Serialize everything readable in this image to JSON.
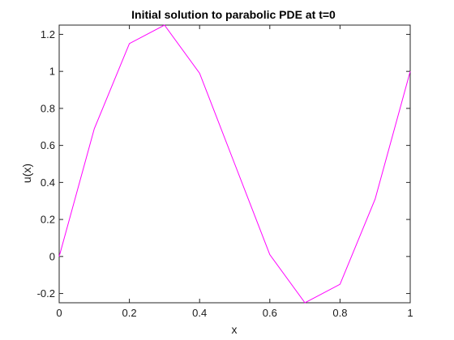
{
  "chart_data": {
    "type": "line",
    "title": "Initial solution to parabolic PDE at t=0",
    "xlabel": "x",
    "ylabel": "u(x)",
    "xlim": [
      0,
      1
    ],
    "ylim": [
      -0.25,
      1.25
    ],
    "xticks": [
      0,
      0.2,
      0.4,
      0.6,
      0.8,
      1
    ],
    "xtick_labels": [
      "0",
      "0.2",
      "0.4",
      "0.6",
      "0.8",
      "1"
    ],
    "yticks": [
      -0.2,
      0,
      0.2,
      0.4,
      0.6,
      0.8,
      1,
      1.2
    ],
    "ytick_labels": [
      "-0.2",
      "0",
      "0.2",
      "0.4",
      "0.6",
      "0.8",
      "1",
      "1.2"
    ],
    "grid": false,
    "series": [
      {
        "color": "#ff00ff",
        "x": [
          0,
          0.1,
          0.2,
          0.3,
          0.4,
          0.5,
          0.6,
          0.7,
          0.8,
          0.9,
          1.0
        ],
        "y": [
          0,
          0.69,
          1.15,
          1.25,
          0.99,
          0.5,
          0.01,
          -0.25,
          -0.15,
          0.31,
          1.0
        ]
      }
    ]
  }
}
